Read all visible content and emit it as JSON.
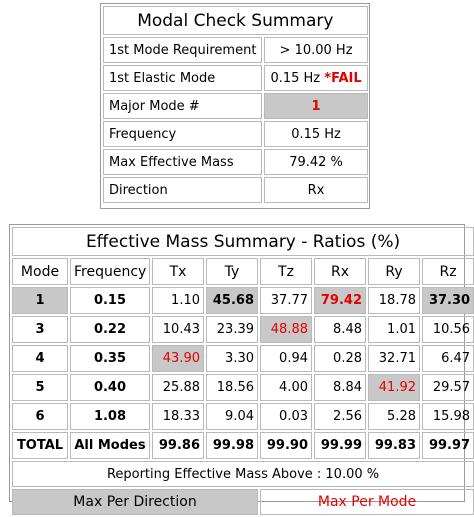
{
  "modal_check": {
    "title": "Modal Check Summary",
    "rows": [
      {
        "label": "1st Mode Requirement",
        "value": "> 10.00 Hz"
      },
      {
        "label": "1st Elastic Mode",
        "value": "0.15 Hz",
        "flag": "*FAIL"
      },
      {
        "label": "Major Mode #",
        "value": "1"
      },
      {
        "label": "Frequency",
        "value": "0.15 Hz"
      },
      {
        "label": "Max Effective Mass",
        "value": "79.42 %"
      },
      {
        "label": "Direction",
        "value": "Rx"
      }
    ]
  },
  "mass_summary": {
    "title": "Effective Mass Summary - Ratios (%)",
    "headers": [
      "Mode",
      "Frequency",
      "Tx",
      "Ty",
      "Tz",
      "Rx",
      "Ry",
      "Rz"
    ],
    "rows": [
      {
        "mode": "1",
        "freq": "0.15",
        "values": [
          "1.10",
          "45.68",
          "37.77",
          "79.42",
          "18.78",
          "37.30"
        ]
      },
      {
        "mode": "3",
        "freq": "0.22",
        "values": [
          "10.43",
          "23.39",
          "48.88",
          "8.48",
          "1.01",
          "10.56"
        ]
      },
      {
        "mode": "4",
        "freq": "0.35",
        "values": [
          "43.90",
          "3.30",
          "0.94",
          "0.28",
          "32.71",
          "6.47"
        ]
      },
      {
        "mode": "5",
        "freq": "0.40",
        "values": [
          "25.88",
          "18.56",
          "4.00",
          "8.84",
          "41.92",
          "29.57"
        ]
      },
      {
        "mode": "6",
        "freq": "1.08",
        "values": [
          "18.33",
          "9.04",
          "0.03",
          "2.56",
          "5.28",
          "15.98"
        ]
      }
    ],
    "total": {
      "label": "TOTAL",
      "freq": "All Modes",
      "values": [
        "99.86",
        "99.98",
        "99.90",
        "99.99",
        "99.83",
        "99.97"
      ]
    },
    "note": "Reporting Effective Mass Above : 10.00 %",
    "legend": {
      "max_per_direction": "Max Per Direction",
      "max_per_mode": "Max Per Mode"
    }
  },
  "colors": {
    "highlight_gray": "#c8c8c8",
    "fail_red": "#e60000"
  }
}
